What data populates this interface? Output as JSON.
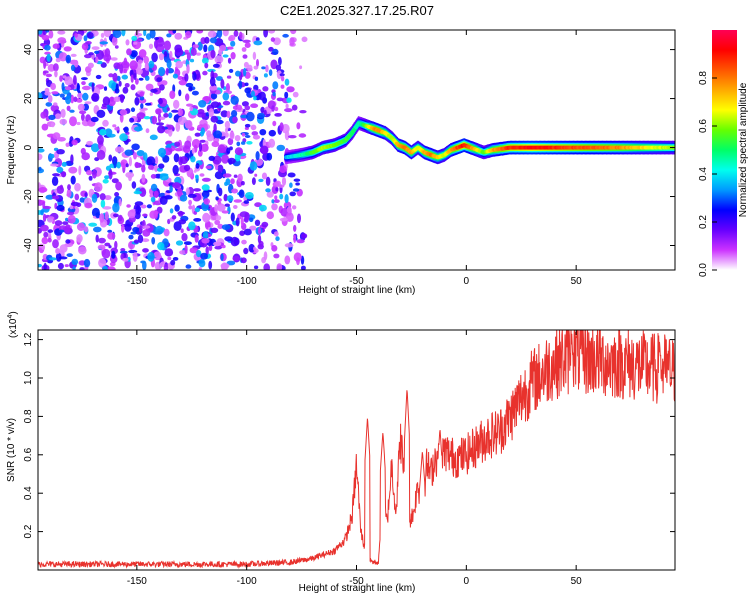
{
  "title": "C2E1.2025.327.17.25.R07",
  "chart_data": [
    {
      "type": "heatmap",
      "xlabel": "Height of straight line (km)",
      "ylabel": "Frequency (Hz)",
      "xlim": [
        -195,
        95
      ],
      "ylim": [
        -50,
        48
      ],
      "x_ticks": [
        -150,
        -100,
        -50,
        0,
        50
      ],
      "y_ticks": [
        -40,
        -20,
        0,
        20,
        40
      ],
      "colorbar": {
        "label": "Normalized spectral amplitude",
        "range": [
          0,
          1
        ],
        "ticks": [
          "0.0",
          "0.2",
          "0.4",
          "0.6",
          "0.8"
        ],
        "tick_values": [
          0,
          0.2,
          0.4,
          0.6,
          0.8
        ],
        "colors": [
          "#ffffff",
          "#cc33ff",
          "#6600ff",
          "#0000ff",
          "#0099ff",
          "#00ffee",
          "#00ff66",
          "#66ff00",
          "#ffff00",
          "#ffaa00",
          "#ff5500",
          "#ff0000",
          "#ff0055"
        ]
      },
      "ridge": {
        "x": [
          -82,
          -75,
          -70,
          -65,
          -60,
          -55,
          -52,
          -49,
          -46,
          -43,
          -40,
          -37,
          -34,
          -31,
          -28,
          -25,
          -22,
          -19,
          -16,
          -13,
          -10,
          -7,
          -4,
          -1,
          2,
          5,
          8,
          12,
          20,
          30,
          40,
          50,
          60,
          70,
          80,
          95
        ],
        "y": [
          -4,
          -3,
          -2,
          0,
          1,
          3,
          6,
          10,
          9,
          8,
          7,
          6,
          4,
          1,
          0,
          -2,
          0,
          -2,
          -3,
          -4,
          -3,
          -1,
          0,
          1,
          0,
          -1,
          -2,
          -1,
          0,
          0,
          0,
          0,
          0,
          0,
          0,
          0
        ],
        "amplitude": [
          0.35,
          0.45,
          0.55,
          0.62,
          0.6,
          0.55,
          0.5,
          0.45,
          0.55,
          0.75,
          0.8,
          0.7,
          0.6,
          0.75,
          0.8,
          0.75,
          0.65,
          0.75,
          0.8,
          0.7,
          0.65,
          0.75,
          0.85,
          0.9,
          0.8,
          0.7,
          0.55,
          0.75,
          0.88,
          0.92,
          0.88,
          0.85,
          0.82,
          0.78,
          0.7,
          0.6
        ]
      },
      "noise_region": {
        "x_range": [
          -195,
          -70
        ],
        "amplitude_range": [
          0.05,
          0.35
        ]
      }
    },
    {
      "type": "line",
      "xlabel": "Height of straight line (km)",
      "ylabel": "SNR (10 * v/v)",
      "multiplier": "(x10",
      "multiplier_exp": "4",
      "multiplier_close": ")",
      "xlim": [
        -195,
        95
      ],
      "ylim": [
        0,
        1.25
      ],
      "x_ticks": [
        -150,
        -100,
        -50,
        0,
        50
      ],
      "y_ticks": [
        0.2,
        0.4,
        0.6,
        0.8,
        1.0,
        1.2
      ],
      "y_tick_labels": [
        "0.2",
        "0.4",
        "0.6",
        "0.8",
        "1.0",
        "1.2"
      ],
      "color": "#e8322d",
      "envelope_x": [
        -195,
        -150,
        -100,
        -80,
        -70,
        -60,
        -55,
        -52,
        -50,
        -48,
        -46,
        -44,
        -42,
        -40,
        -38,
        -36,
        -34,
        -32,
        -30,
        -28,
        -26,
        -24,
        -22,
        -20,
        -18,
        -16,
        -14,
        -12,
        -10,
        -5,
        0,
        5,
        10,
        15,
        20,
        25,
        30,
        35,
        40,
        45,
        50,
        55,
        60,
        65,
        70,
        75,
        80,
        85,
        90,
        95
      ],
      "envelope_y": [
        0.03,
        0.03,
        0.03,
        0.04,
        0.06,
        0.1,
        0.16,
        0.28,
        0.55,
        0.2,
        0.1,
        0.05,
        0.04,
        0.04,
        0.35,
        0.25,
        0.55,
        0.3,
        0.7,
        0.45,
        0.25,
        0.3,
        0.45,
        0.3,
        0.55,
        0.5,
        0.6,
        0.55,
        0.62,
        0.58,
        0.6,
        0.65,
        0.7,
        0.72,
        0.8,
        0.9,
        0.98,
        1.03,
        1.08,
        1.1,
        1.12,
        1.1,
        1.1,
        1.08,
        1.08,
        1.07,
        1.06,
        1.05,
        1.05,
        1.03
      ],
      "spikes": [
        {
          "x": -45,
          "y": 0.8
        },
        {
          "x": -27,
          "y": 0.95
        },
        {
          "x": -38,
          "y": 0.72
        },
        {
          "x": -20,
          "y": 0.62
        },
        {
          "x": -12,
          "y": 0.74
        },
        {
          "x": 48,
          "y": 1.23
        },
        {
          "x": 88,
          "y": 1.2
        }
      ]
    }
  ]
}
